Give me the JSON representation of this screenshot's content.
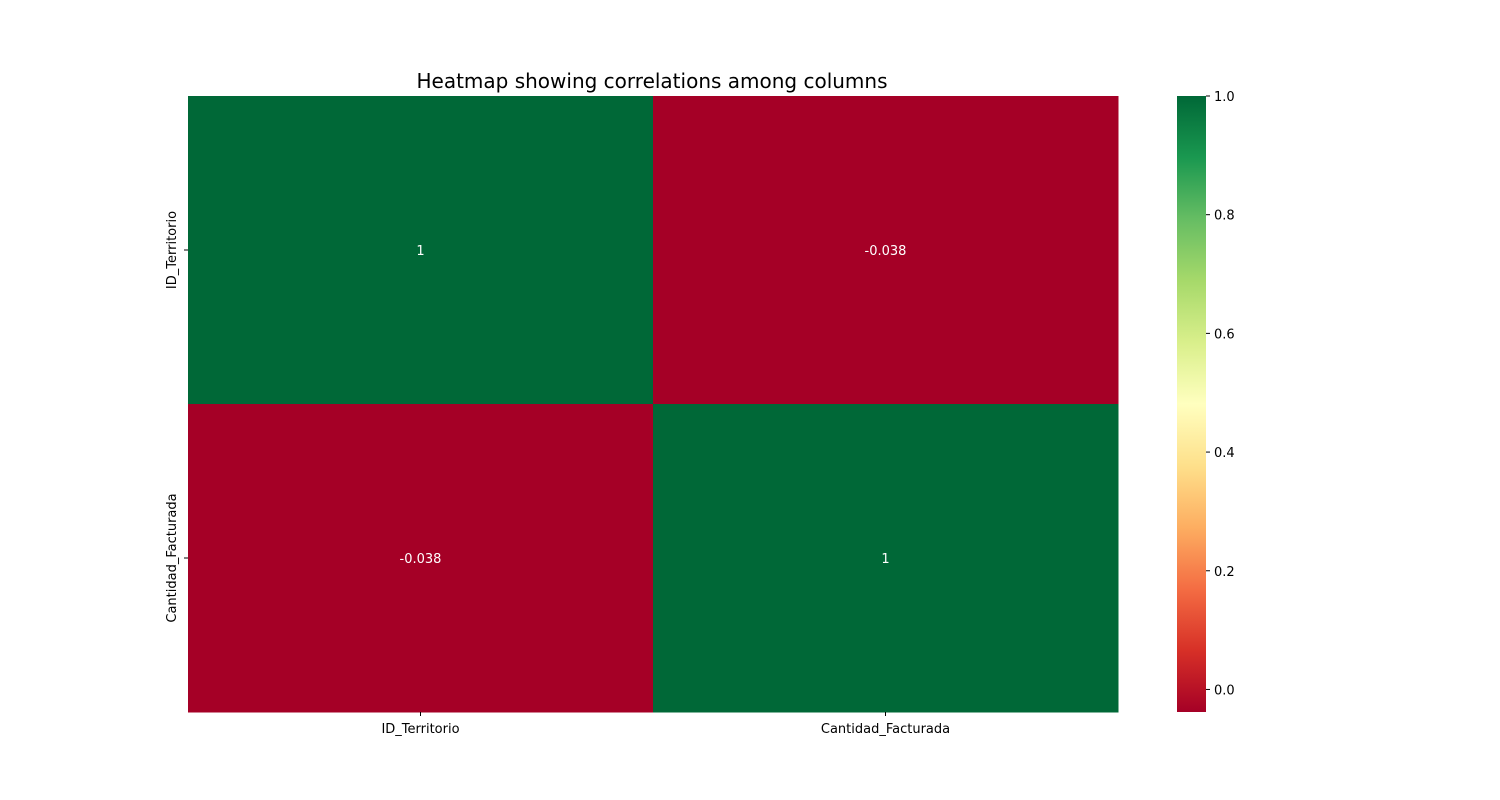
{
  "chart_data": {
    "type": "heatmap",
    "title": "Heatmap showing correlations among columns",
    "x_labels": [
      "ID_Territorio",
      "Cantidad_Facturada"
    ],
    "y_labels": [
      "ID_Territorio",
      "Cantidad_Facturada"
    ],
    "values": [
      [
        1,
        -0.038
      ],
      [
        -0.038,
        1
      ]
    ],
    "annotations": [
      [
        "1",
        "-0.038"
      ],
      [
        "-0.038",
        "1"
      ]
    ],
    "colormap": "RdYlGn",
    "colorbar": {
      "range": [
        -0.038,
        1.0
      ],
      "ticks": [
        0.0,
        0.2,
        0.4,
        0.6,
        0.8,
        1.0
      ],
      "tick_labels": [
        "0.0",
        "0.2",
        "0.4",
        "0.6",
        "0.8",
        "1.0"
      ]
    },
    "annotation_color": "#ffffff",
    "colors": {
      "high": "#006837",
      "low": "#a50026"
    }
  }
}
